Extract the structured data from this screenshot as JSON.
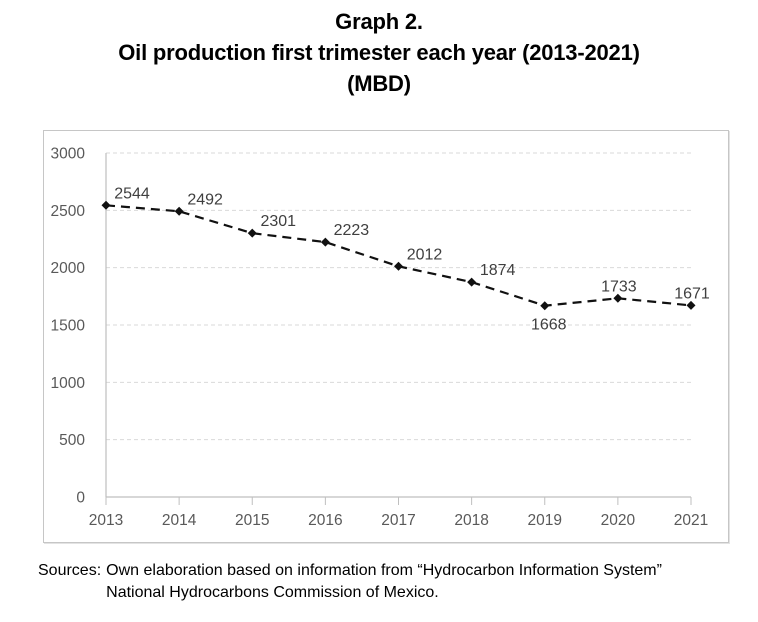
{
  "title": {
    "lines": [
      "Graph 2.",
      "Oil production first trimester each year (2013-2021)",
      "(MBD)"
    ]
  },
  "chart_data": {
    "type": "line",
    "title": "Graph 2. Oil production first trimester each year (2013-2021) (MBD)",
    "categories": [
      "2013",
      "2014",
      "2015",
      "2016",
      "2017",
      "2018",
      "2019",
      "2020",
      "2021"
    ],
    "series": [
      {
        "name": "Oil production first trimester (MBD)",
        "values": [
          2544,
          2492,
          2301,
          2223,
          2012,
          1874,
          1668,
          1733,
          1671
        ]
      }
    ],
    "xlabel": "",
    "ylabel": "",
    "ylim": [
      0,
      3000
    ],
    "yticks": [
      0,
      500,
      1000,
      1500,
      2000,
      2500,
      3000
    ],
    "grid": "horizontal-dashed",
    "legend": "none",
    "line_style": {
      "color": "#111111",
      "dash": "dashed",
      "marker": "diamond"
    },
    "data_labels": {
      "show": true,
      "positions": [
        "above-right",
        "above-right",
        "above-right",
        "above-right",
        "above-right",
        "above-right",
        "below",
        "above",
        "above"
      ]
    }
  },
  "colors": {
    "title_text": "#000000",
    "axis_text": "#595959",
    "data_label_text": "#3f3f3f",
    "gridline": "#dadada",
    "axis_line": "#bfbfbf",
    "series_line": "#111111",
    "marker_fill": "#111111",
    "panel_border": "#c6c6c6",
    "background": "#ffffff"
  },
  "source": {
    "prefix": "Sources:",
    "line1": "Own elaboration based on information from “Hydrocarbon Information System”",
    "line2": "National Hydrocarbons Commission of Mexico."
  }
}
